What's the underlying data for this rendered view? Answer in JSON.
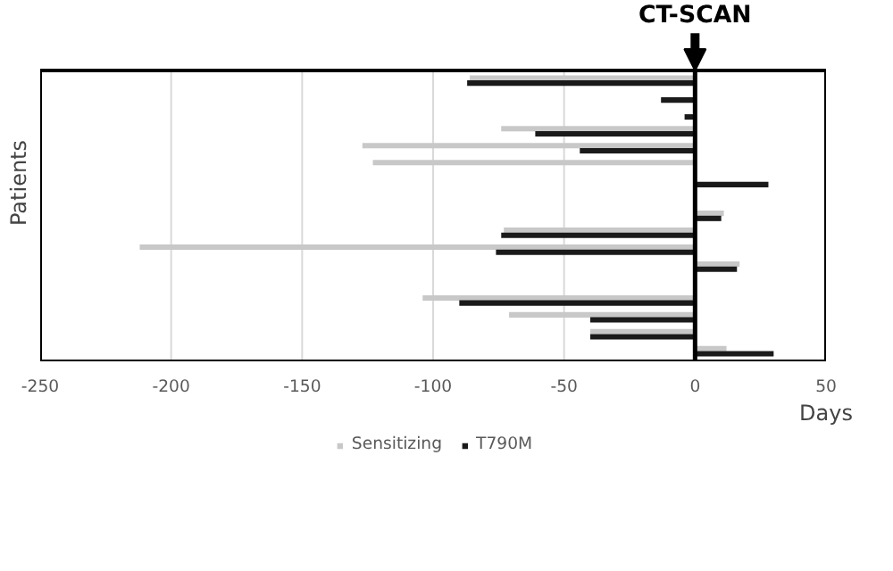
{
  "chart_data": {
    "type": "bar",
    "orientation": "horizontal",
    "xlabel": "Days",
    "ylabel": "Patients",
    "categories": [
      null,
      null,
      null,
      null,
      null,
      null,
      null,
      null,
      null,
      null,
      null,
      null,
      null,
      null,
      null,
      null,
      null
    ],
    "series": [
      {
        "name": "Sensitizing",
        "color": "#c8c8c8",
        "values": [
          -86,
          null,
          null,
          -74,
          -127,
          -123,
          null,
          null,
          11,
          -73,
          -212,
          17,
          null,
          -104,
          -71,
          -40,
          12
        ]
      },
      {
        "name": "T790M",
        "color": "#1a1a1a",
        "values": [
          -87,
          -13,
          -4,
          -61,
          -44,
          null,
          28,
          null,
          10,
          -74,
          -76,
          16,
          null,
          -90,
          -40,
          -40,
          30
        ]
      }
    ],
    "xlim": [
      -250,
      50
    ],
    "xticks": [
      -250,
      -200,
      -150,
      -100,
      -50,
      0,
      50
    ],
    "grid": "x",
    "legend": "bottom",
    "tick_labels": "x",
    "ref_lines": [
      {
        "axis": "x",
        "value": 0,
        "label": "CT-SCAN",
        "color": "#000000"
      }
    ]
  }
}
